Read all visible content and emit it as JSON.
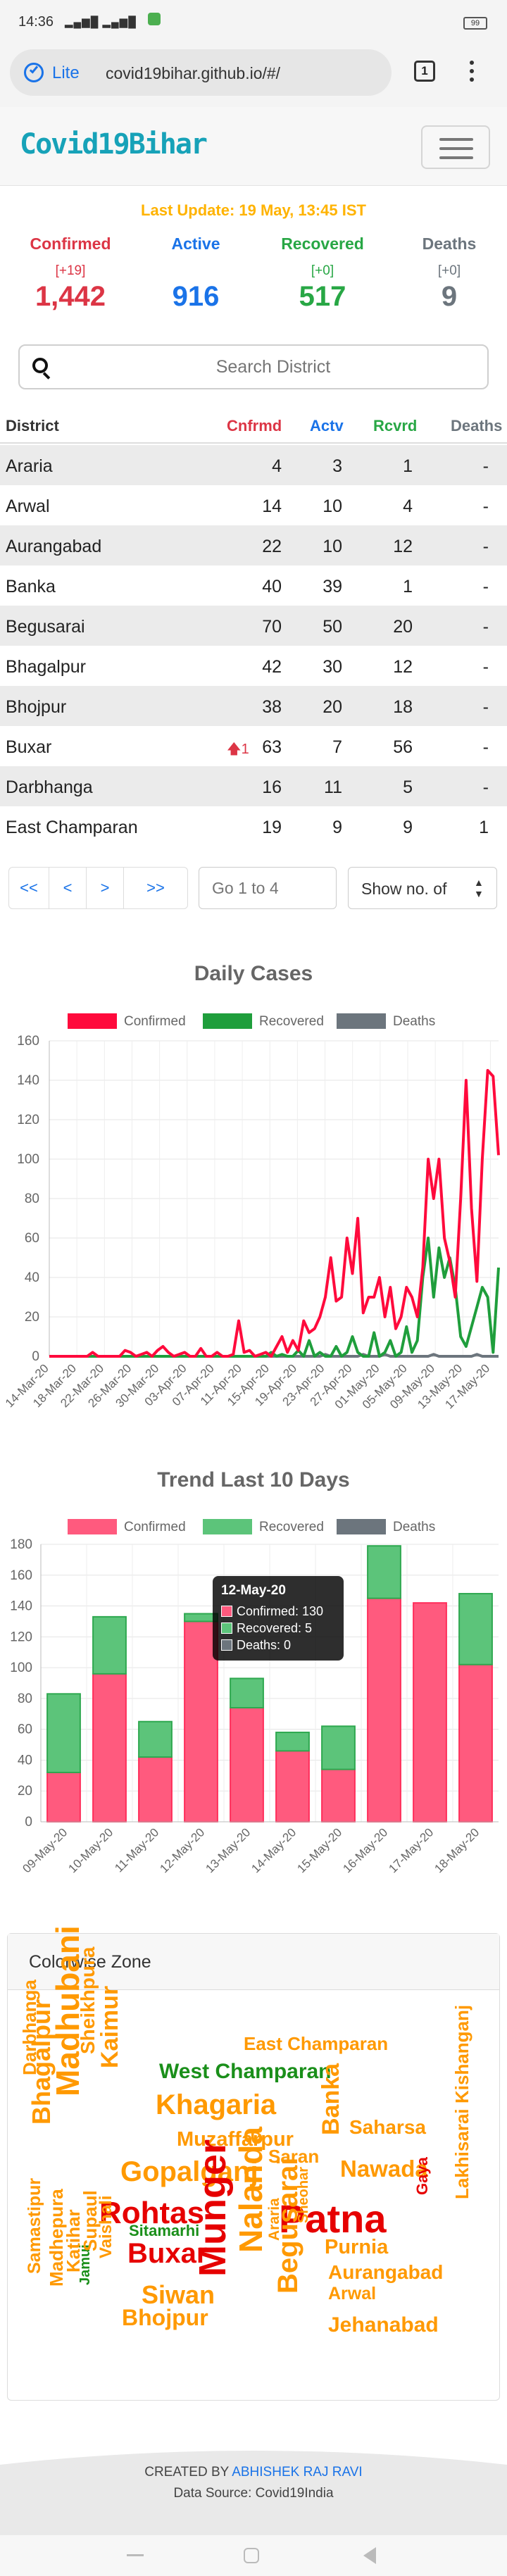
{
  "status_bar": {
    "time": "14:36",
    "battery": "99"
  },
  "browser": {
    "lite_label": "Lite",
    "url": "covid19bihar.github.io/#/",
    "tab_count": "1"
  },
  "navbar": {
    "brand": "Covid19Bihar"
  },
  "summary": {
    "last_update": "Last Update: 19 May, 13:45 IST",
    "confirmed": {
      "label": "Confirmed",
      "delta": "[+19]",
      "value": "1,442",
      "color": "#dc3545"
    },
    "active": {
      "label": "Active",
      "delta": "",
      "value": "916",
      "color": "#1a73e8"
    },
    "recovered": {
      "label": "Recovered",
      "delta": "[+0]",
      "value": "517",
      "color": "#28a745"
    },
    "deaths": {
      "label": "Deaths",
      "delta": "[+0]",
      "value": "9",
      "color": "#6c757d"
    }
  },
  "search": {
    "placeholder": "Search District"
  },
  "table": {
    "headers": [
      "District",
      "Cnfrmd",
      "Actv",
      "Rcvrd",
      "Deaths"
    ],
    "rows": [
      {
        "district": "Araria",
        "confirmed": "4",
        "active": "3",
        "recovered": "1",
        "deaths": "-",
        "delta": ""
      },
      {
        "district": "Arwal",
        "confirmed": "14",
        "active": "10",
        "recovered": "4",
        "deaths": "-",
        "delta": ""
      },
      {
        "district": "Aurangabad",
        "confirmed": "22",
        "active": "10",
        "recovered": "12",
        "deaths": "-",
        "delta": ""
      },
      {
        "district": "Banka",
        "confirmed": "40",
        "active": "39",
        "recovered": "1",
        "deaths": "-",
        "delta": ""
      },
      {
        "district": "Begusarai",
        "confirmed": "70",
        "active": "50",
        "recovered": "20",
        "deaths": "-",
        "delta": ""
      },
      {
        "district": "Bhagalpur",
        "confirmed": "42",
        "active": "30",
        "recovered": "12",
        "deaths": "-",
        "delta": ""
      },
      {
        "district": "Bhojpur",
        "confirmed": "38",
        "active": "20",
        "recovered": "18",
        "deaths": "-",
        "delta": ""
      },
      {
        "district": "Buxar",
        "confirmed": "63",
        "active": "7",
        "recovered": "56",
        "deaths": "-",
        "delta": "1"
      },
      {
        "district": "Darbhanga",
        "confirmed": "16",
        "active": "11",
        "recovered": "5",
        "deaths": "-",
        "delta": ""
      },
      {
        "district": "East Champaran",
        "confirmed": "19",
        "active": "9",
        "recovered": "9",
        "deaths": "1",
        "delta": ""
      }
    ]
  },
  "pagination": {
    "first": "<<",
    "prev": "<",
    "next": ">",
    "last": ">>",
    "goto_placeholder": "Go 1 to 4",
    "show_label": "Show no. of"
  },
  "chart_data": [
    {
      "type": "line",
      "title": "Daily Cases",
      "ylim": [
        0,
        160
      ],
      "yticks": [
        0,
        20,
        40,
        60,
        80,
        100,
        120,
        140,
        160
      ],
      "x_tick_labels": [
        "14-Mar-20",
        "18-Mar-20",
        "22-Mar-20",
        "26-Mar-20",
        "30-Mar-20",
        "03-Apr-20",
        "07-Apr-20",
        "11-Apr-20",
        "15-Apr-20",
        "19-Apr-20",
        "23-Apr-20",
        "27-Apr-20",
        "01-May-20",
        "05-May-20",
        "09-May-20",
        "13-May-20",
        "17-May-20"
      ],
      "x_start": "14-Mar-20",
      "x_end": "18-May-20",
      "legend_position": "top",
      "series": [
        {
          "name": "Confirmed",
          "color": "#ff0a3c",
          "values": [
            0,
            0,
            0,
            0,
            0,
            0,
            0,
            0,
            2,
            0,
            0,
            0,
            0,
            0,
            3,
            2,
            0,
            1,
            2,
            0,
            3,
            5,
            2,
            0,
            1,
            2,
            0,
            0,
            4,
            0,
            0,
            2,
            0,
            0,
            1,
            18,
            2,
            3,
            0,
            1,
            2,
            0,
            5,
            10,
            2,
            8,
            3,
            18,
            12,
            14,
            20,
            30,
            50,
            28,
            30,
            60,
            42,
            70,
            22,
            30,
            30,
            40,
            20,
            35,
            14,
            20,
            35,
            30,
            20,
            45,
            100,
            80,
            100,
            60,
            48,
            30,
            80,
            140,
            75,
            38,
            100,
            145,
            142,
            102
          ]
        },
        {
          "name": "Recovered",
          "color": "#1f9e3c",
          "values": [
            0,
            0,
            0,
            0,
            0,
            0,
            0,
            0,
            0,
            0,
            0,
            0,
            0,
            0,
            0,
            0,
            0,
            0,
            0,
            0,
            0,
            0,
            0,
            0,
            0,
            0,
            0,
            0,
            0,
            0,
            0,
            0,
            0,
            0,
            0,
            0,
            0,
            0,
            0,
            0,
            0,
            2,
            0,
            1,
            0,
            0,
            3,
            0,
            8,
            0,
            2,
            0,
            0,
            5,
            0,
            2,
            10,
            2,
            0,
            0,
            12,
            0,
            2,
            8,
            0,
            2,
            15,
            2,
            8,
            40,
            60,
            30,
            55,
            40,
            50,
            35,
            10,
            5,
            15,
            25,
            35,
            30,
            2,
            45
          ]
        },
        {
          "name": "Deaths",
          "color": "#6c757d",
          "values": [
            0,
            0,
            0,
            0,
            0,
            0,
            0,
            0,
            0,
            0,
            0,
            0,
            0,
            0,
            0,
            0,
            0,
            0,
            0,
            0,
            0,
            0,
            0,
            0,
            0,
            0,
            0,
            0,
            0,
            0,
            0,
            0,
            0,
            0,
            0,
            0,
            0,
            0,
            0,
            0,
            0,
            0,
            0,
            0,
            0,
            0,
            0,
            0,
            0,
            0,
            0,
            1,
            0,
            0,
            0,
            0,
            0,
            0,
            1,
            0,
            0,
            0,
            1,
            0,
            0,
            0,
            0,
            0,
            0,
            0,
            0,
            1,
            0,
            0,
            0,
            0,
            0,
            0,
            0,
            1,
            0,
            0,
            0,
            0
          ]
        }
      ]
    },
    {
      "type": "bar",
      "stacked": true,
      "title": "Trend Last 10 Days",
      "ylim": [
        0,
        180
      ],
      "yticks": [
        0,
        20,
        40,
        60,
        80,
        100,
        120,
        140,
        160,
        180
      ],
      "categories": [
        "09-May-20",
        "10-May-20",
        "11-May-20",
        "12-May-20",
        "13-May-20",
        "14-May-20",
        "15-May-20",
        "16-May-20",
        "17-May-20",
        "18-May-20"
      ],
      "legend_position": "top",
      "series": [
        {
          "name": "Confirmed",
          "color": "#ff5a7e",
          "values": [
            32,
            96,
            42,
            130,
            74,
            46,
            34,
            145,
            142,
            102
          ]
        },
        {
          "name": "Recovered",
          "color": "#5cc47a",
          "values": [
            51,
            37,
            23,
            5,
            19,
            12,
            28,
            34,
            0,
            46
          ]
        },
        {
          "name": "Deaths",
          "color": "#6c757d",
          "values": [
            0,
            0,
            0,
            0,
            0,
            0,
            0,
            0,
            0,
            0
          ]
        }
      ],
      "tooltip": {
        "title": "12-May-20",
        "lines": [
          "Confirmed: 130",
          "Recovered: 5",
          "Deaths: 0"
        ]
      }
    }
  ],
  "zone": {
    "title": "Colorwise Zone",
    "words": [
      {
        "text": "East Champaran",
        "color": "#ff9900"
      },
      {
        "text": "West Champaran",
        "color": "#1a8f1a"
      },
      {
        "text": "Khagaria",
        "color": "#ff9900"
      },
      {
        "text": "Saharsa",
        "color": "#ff9900"
      },
      {
        "text": "Muzaffarpur",
        "color": "#ff9900"
      },
      {
        "text": "Nawada",
        "color": "#ff9900"
      },
      {
        "text": "Gopalganj",
        "color": "#ff9900"
      },
      {
        "text": "Saran",
        "color": "#ff9900"
      },
      {
        "text": "Banka",
        "color": "#ff9900"
      },
      {
        "text": "Rohtas",
        "color": "#e60000"
      },
      {
        "text": "Patna",
        "color": "#e60000"
      },
      {
        "text": "Purnia",
        "color": "#ff9900"
      },
      {
        "text": "Gaya",
        "color": "#e60000"
      },
      {
        "text": "Sitamarhi",
        "color": "#1a8f1a"
      },
      {
        "text": "Buxar",
        "color": "#e60000"
      },
      {
        "text": "Aurangabad",
        "color": "#ff9900"
      },
      {
        "text": "Arwal",
        "color": "#ff9900"
      },
      {
        "text": "Siwan",
        "color": "#ff9900"
      },
      {
        "text": "Jehanabad",
        "color": "#ff9900"
      },
      {
        "text": "Bhojpur",
        "color": "#ff9900"
      },
      {
        "text": "Darbhanga",
        "color": "#ff9900"
      },
      {
        "text": "Bhagalpur",
        "color": "#ff9900"
      },
      {
        "text": "Madhubani",
        "color": "#ff9900"
      },
      {
        "text": "Sheikhpura",
        "color": "#ff9900"
      },
      {
        "text": "Kaimur",
        "color": "#ff9900"
      },
      {
        "text": "Samastipur",
        "color": "#ff9900"
      },
      {
        "text": "Madhepura",
        "color": "#ff9900"
      },
      {
        "text": "Jamui",
        "color": "#1a8f1a"
      },
      {
        "text": "Katihar",
        "color": "#ff9900"
      },
      {
        "text": "Supaul",
        "color": "#ff9900"
      },
      {
        "text": "Vaishali",
        "color": "#ff9900"
      },
      {
        "text": "Munger",
        "color": "#e60000"
      },
      {
        "text": "Nalanda",
        "color": "#ff9900"
      },
      {
        "text": "Araria",
        "color": "#ff9900"
      },
      {
        "text": "Sheohar",
        "color": "#ff9900"
      },
      {
        "text": "Begusarai",
        "color": "#ff9900"
      },
      {
        "text": "Lakhisarai",
        "color": "#ff9900"
      },
      {
        "text": "Kishanganj",
        "color": "#ff9900"
      }
    ]
  },
  "footer": {
    "created_prefix": "CREATED BY",
    "author": "ABHISHEK RAJ RAVI",
    "source": "Data Source: Covid19India"
  }
}
